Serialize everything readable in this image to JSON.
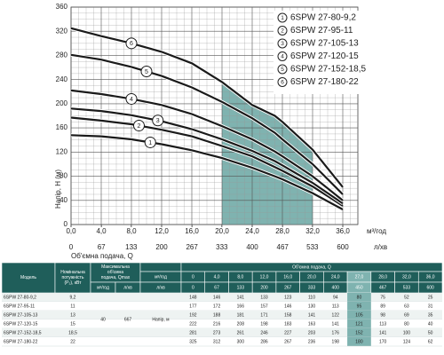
{
  "chart_data": {
    "type": "line",
    "y_label": "Напір, H (м)",
    "x_label": "Об'ємна подача, Q",
    "x_unit": "м³/год",
    "x2_unit": "л/хв",
    "xlim": [
      0,
      38
    ],
    "xticks": [
      {
        "value": 0,
        "label": "0,0"
      },
      {
        "value": 4,
        "label": "4,0"
      },
      {
        "value": 8,
        "label": "8,0"
      },
      {
        "value": 12,
        "label": "12,0"
      },
      {
        "value": 16,
        "label": "16,0"
      },
      {
        "value": 20,
        "label": "20,0"
      },
      {
        "value": 24,
        "label": "24,0"
      },
      {
        "value": 28,
        "label": "28,0"
      },
      {
        "value": 32,
        "label": "32,0"
      },
      {
        "value": 36,
        "label": "36,0"
      }
    ],
    "x2lim": [
      0,
      633.3
    ],
    "x2ticks": [
      0,
      67,
      133,
      200,
      267,
      333,
      400,
      467,
      533,
      600
    ],
    "ylim": [
      0,
      360
    ],
    "yticks": [
      0,
      40,
      80,
      120,
      160,
      200,
      240,
      280,
      320,
      360
    ],
    "grid": true,
    "shade_x": [
      20,
      32
    ],
    "shade_color": "#7fb3b0",
    "x": [
      0,
      4,
      8,
      12,
      16,
      20,
      24,
      27,
      28,
      32,
      36
    ],
    "series": [
      {
        "name": "6SPW 27-80-9,2",
        "label": "1",
        "color": "#1a1a1a",
        "values": [
          148,
          146,
          141,
          133,
          123,
          110,
          94,
          80,
          75,
          52,
          25
        ]
      },
      {
        "name": "6SPW 27-95-11",
        "label": "2",
        "color": "#1a1a1a",
        "values": [
          177,
          172,
          166,
          157,
          146,
          130,
          113,
          95,
          89,
          63,
          31
        ]
      },
      {
        "name": "6SPW 27-105-13",
        "label": "3",
        "color": "#1a1a1a",
        "values": [
          192,
          188,
          181,
          171,
          158,
          141,
          122,
          105,
          98,
          69,
          35
        ]
      },
      {
        "name": "6SPW 27-120-15",
        "label": "4",
        "color": "#1a1a1a",
        "values": [
          222,
          216,
          208,
          198,
          183,
          163,
          141,
          121,
          113,
          80,
          40
        ]
      },
      {
        "name": "6SPW 27-152-18,5",
        "label": "5",
        "color": "#1a1a1a",
        "values": [
          281,
          273,
          261,
          246,
          227,
          203,
          176,
          152,
          141,
          100,
          50
        ]
      },
      {
        "name": "6SPW 27-180-22",
        "label": "6",
        "color": "#1a1a1a",
        "values": [
          325,
          312,
          300,
          286,
          267,
          236,
          198,
          180,
          170,
          124,
          62
        ]
      }
    ]
  },
  "table": {
    "header": {
      "model": "Модель",
      "power": "Номінальна потужність (P₂), кВт",
      "qmax": "Максимальна об'ємна подача, Qmax",
      "qmax_units": [
        "м³/год",
        "л/хв"
      ],
      "flow": "Об'ємна подача, Q",
      "flow_units": [
        "м³/год",
        "л/хв"
      ],
      "q_m3h": [
        "0",
        "4,0",
        "8,0",
        "12,0",
        "16,0",
        "20,0",
        "24,0",
        "27,0",
        "28,0",
        "32,0",
        "36,0"
      ],
      "q_lmin": [
        "0",
        "67",
        "133",
        "200",
        "267",
        "333",
        "400",
        "450",
        "467",
        "533",
        "600"
      ]
    },
    "qmax_values": [
      "40",
      "667"
    ],
    "head_label": "Напір, м",
    "rows": [
      {
        "model": "6SPW 27-80-9,2",
        "power": "9,2",
        "values": [
          "148",
          "146",
          "141",
          "133",
          "123",
          "110",
          "94",
          "80",
          "75",
          "52",
          "25"
        ]
      },
      {
        "model": "6SPW 27-95-11",
        "power": "11",
        "values": [
          "177",
          "172",
          "166",
          "157",
          "146",
          "130",
          "113",
          "95",
          "89",
          "63",
          "31"
        ]
      },
      {
        "model": "6SPW 27-105-13",
        "power": "13",
        "values": [
          "192",
          "188",
          "181",
          "171",
          "158",
          "141",
          "122",
          "105",
          "98",
          "69",
          "35"
        ]
      },
      {
        "model": "6SPW 27-120-15",
        "power": "15",
        "values": [
          "222",
          "216",
          "208",
          "198",
          "183",
          "163",
          "141",
          "121",
          "113",
          "80",
          "40"
        ]
      },
      {
        "model": "6SPW 27-152-18,5",
        "power": "18,5",
        "values": [
          "281",
          "273",
          "261",
          "246",
          "227",
          "203",
          "176",
          "152",
          "141",
          "100",
          "50"
        ]
      },
      {
        "model": "6SPW 27-180-22",
        "power": "22",
        "values": [
          "325",
          "312",
          "300",
          "286",
          "267",
          "236",
          "198",
          "180",
          "170",
          "124",
          "62"
        ]
      }
    ]
  }
}
